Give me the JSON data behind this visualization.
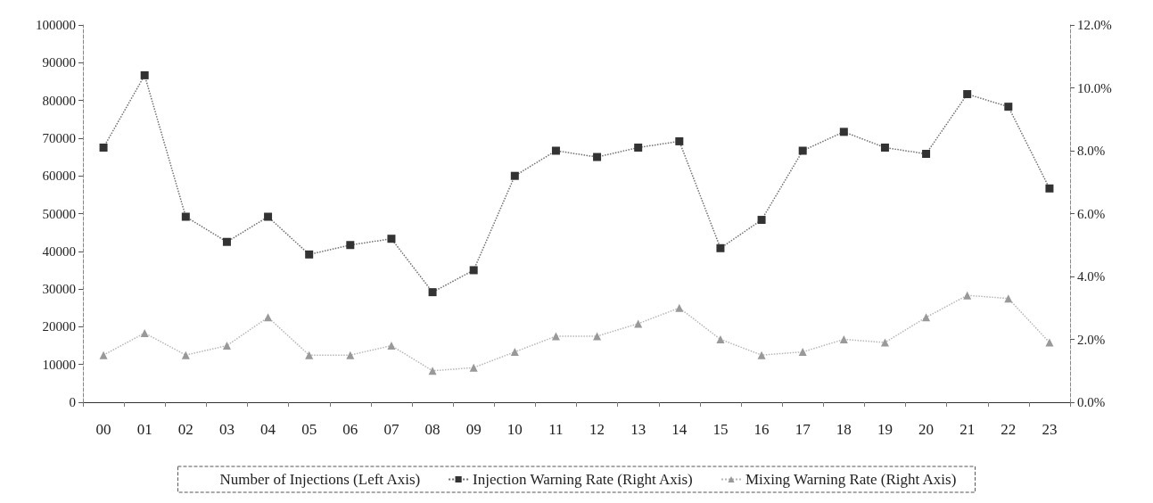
{
  "chart_data": {
    "type": "line",
    "categories": [
      "00",
      "01",
      "02",
      "03",
      "04",
      "05",
      "06",
      "07",
      "08",
      "09",
      "10",
      "11",
      "12",
      "13",
      "14",
      "15",
      "16",
      "17",
      "18",
      "19",
      "20",
      "21",
      "22",
      "23"
    ],
    "series": [
      {
        "name": "Number of Injections (Left Axis)",
        "type": "bar",
        "values": [
          null,
          null,
          null,
          null,
          null,
          null,
          null,
          null,
          null,
          null,
          null,
          null,
          null,
          null,
          null,
          null,
          null,
          null,
          null,
          null,
          null,
          null,
          null,
          null
        ]
      },
      {
        "name": "Injection Warning Rate (Right Axis)",
        "axis": "y2",
        "color": "#333333",
        "marker": "square",
        "values": [
          8.1,
          10.4,
          5.9,
          5.1,
          5.9,
          4.7,
          5.0,
          5.2,
          3.5,
          4.2,
          7.2,
          8.0,
          7.8,
          8.1,
          8.3,
          4.9,
          5.8,
          8.0,
          8.6,
          8.1,
          7.9,
          9.8,
          9.4,
          6.8
        ]
      },
      {
        "name": "Mixing Warning Rate (Right Axis)",
        "axis": "y2",
        "color": "#999999",
        "marker": "triangle",
        "values": [
          1.5,
          2.2,
          1.5,
          1.8,
          2.7,
          1.5,
          1.5,
          1.8,
          1.0,
          1.1,
          1.6,
          2.1,
          2.1,
          2.5,
          3.0,
          2.0,
          1.5,
          1.6,
          2.0,
          1.9,
          2.7,
          3.4,
          3.3,
          1.9
        ]
      }
    ],
    "ylim": [
      0,
      100000
    ],
    "yticks": [
      0,
      10000,
      20000,
      30000,
      40000,
      50000,
      60000,
      70000,
      80000,
      90000,
      100000
    ],
    "y2lim": [
      0,
      12
    ],
    "y2ticks": [
      {
        "value": 0,
        "label": "0.0%"
      },
      {
        "value": 2,
        "label": "2.0%"
      },
      {
        "value": 4,
        "label": "4.0%"
      },
      {
        "value": 6,
        "label": "6.0%"
      },
      {
        "value": 8,
        "label": "8.0%"
      },
      {
        "value": 10,
        "label": "10.0%"
      },
      {
        "value": 12,
        "label": "12.0%"
      }
    ],
    "legend": "bottom",
    "grid": false,
    "line_style": "dotted"
  }
}
